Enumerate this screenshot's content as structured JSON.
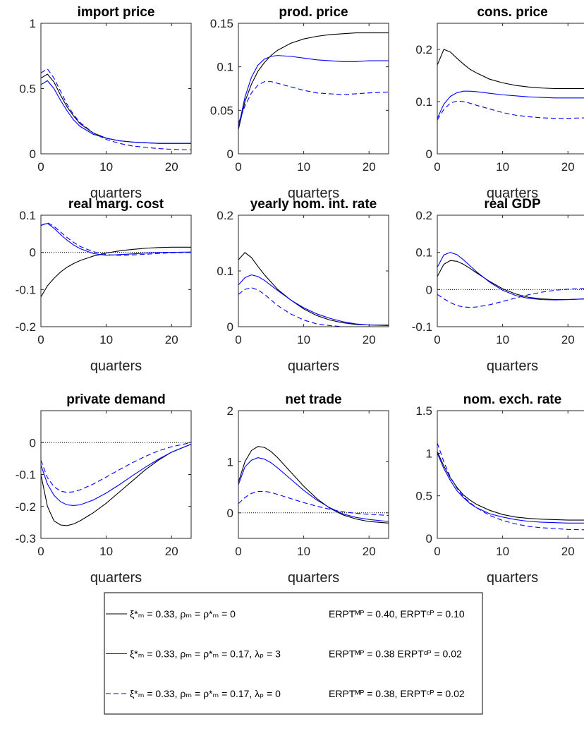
{
  "chart_data": [
    {
      "type": "line",
      "title": "import price",
      "xlabel": "quarters",
      "xlim": [
        0,
        23
      ],
      "xticks": [
        0,
        10,
        20
      ],
      "ylim": [
        0,
        1
      ],
      "yticks": [
        0,
        0.5,
        1
      ],
      "zero_line": false,
      "x": [
        0,
        1,
        2,
        3,
        4,
        5,
        6,
        8,
        10,
        12,
        14,
        16,
        18,
        20,
        23
      ],
      "series": [
        {
          "color": "#000000",
          "dash": false,
          "values": [
            0.58,
            0.61,
            0.55,
            0.45,
            0.36,
            0.29,
            0.23,
            0.16,
            0.12,
            0.1,
            0.09,
            0.085,
            0.08,
            0.08,
            0.08
          ]
        },
        {
          "color": "#0000ff",
          "dash": false,
          "values": [
            0.53,
            0.56,
            0.5,
            0.41,
            0.33,
            0.26,
            0.21,
            0.15,
            0.12,
            0.1,
            0.09,
            0.085,
            0.08,
            0.08,
            0.08
          ]
        },
        {
          "color": "#0000ff",
          "dash": true,
          "values": [
            0.62,
            0.65,
            0.58,
            0.48,
            0.38,
            0.3,
            0.24,
            0.16,
            0.11,
            0.08,
            0.06,
            0.05,
            0.04,
            0.035,
            0.03
          ]
        }
      ]
    },
    {
      "type": "line",
      "title": "prod. price",
      "xlabel": "quarters",
      "xlim": [
        0,
        23
      ],
      "xticks": [
        0,
        10,
        20
      ],
      "ylim": [
        0,
        0.15
      ],
      "yticks": [
        0,
        0.05,
        0.1,
        0.15
      ],
      "zero_line": false,
      "x": [
        0,
        1,
        2,
        3,
        4,
        5,
        6,
        8,
        10,
        12,
        14,
        16,
        18,
        20,
        23
      ],
      "series": [
        {
          "color": "#000000",
          "dash": false,
          "values": [
            0.028,
            0.06,
            0.08,
            0.095,
            0.105,
            0.113,
            0.119,
            0.127,
            0.132,
            0.135,
            0.137,
            0.138,
            0.139,
            0.139,
            0.139
          ]
        },
        {
          "color": "#0000ff",
          "dash": false,
          "values": [
            0.03,
            0.065,
            0.088,
            0.102,
            0.109,
            0.112,
            0.113,
            0.112,
            0.11,
            0.108,
            0.107,
            0.106,
            0.106,
            0.107,
            0.107
          ]
        },
        {
          "color": "#0000ff",
          "dash": true,
          "values": [
            0.035,
            0.055,
            0.07,
            0.079,
            0.083,
            0.083,
            0.081,
            0.077,
            0.073,
            0.07,
            0.069,
            0.068,
            0.069,
            0.07,
            0.071
          ]
        }
      ]
    },
    {
      "type": "line",
      "title": "cons. price",
      "xlabel": "quarters",
      "xlim": [
        0,
        23
      ],
      "xticks": [
        0,
        10,
        20
      ],
      "ylim": [
        0,
        0.25
      ],
      "yticks": [
        0,
        0.1,
        0.2
      ],
      "zero_line": false,
      "x": [
        0,
        1,
        2,
        3,
        4,
        5,
        6,
        8,
        10,
        12,
        14,
        16,
        18,
        20,
        23
      ],
      "series": [
        {
          "color": "#000000",
          "dash": false,
          "values": [
            0.17,
            0.2,
            0.195,
            0.183,
            0.172,
            0.162,
            0.155,
            0.143,
            0.136,
            0.131,
            0.128,
            0.126,
            0.125,
            0.125,
            0.125
          ]
        },
        {
          "color": "#0000ff",
          "dash": false,
          "values": [
            0.068,
            0.095,
            0.11,
            0.117,
            0.12,
            0.12,
            0.119,
            0.116,
            0.113,
            0.111,
            0.109,
            0.108,
            0.107,
            0.107,
            0.107
          ]
        },
        {
          "color": "#0000ff",
          "dash": true,
          "values": [
            0.065,
            0.085,
            0.097,
            0.101,
            0.1,
            0.097,
            0.093,
            0.086,
            0.079,
            0.074,
            0.071,
            0.069,
            0.068,
            0.068,
            0.069
          ]
        }
      ]
    },
    {
      "type": "line",
      "title": "real marg. cost",
      "xlabel": "quarters",
      "xlim": [
        0,
        23
      ],
      "xticks": [
        0,
        10,
        20
      ],
      "ylim": [
        -0.2,
        0.1
      ],
      "yticks": [
        -0.2,
        -0.1,
        0,
        0.1
      ],
      "zero_line": true,
      "x": [
        0,
        1,
        2,
        3,
        4,
        5,
        6,
        8,
        10,
        12,
        14,
        16,
        18,
        20,
        23
      ],
      "series": [
        {
          "color": "#000000",
          "dash": false,
          "values": [
            -0.12,
            -0.09,
            -0.07,
            -0.053,
            -0.04,
            -0.03,
            -0.022,
            -0.01,
            -0.002,
            0.004,
            0.008,
            0.011,
            0.013,
            0.014,
            0.014
          ]
        },
        {
          "color": "#0000ff",
          "dash": false,
          "values": [
            0.073,
            0.078,
            0.065,
            0.048,
            0.033,
            0.02,
            0.01,
            -0.003,
            -0.008,
            -0.006,
            -0.004,
            -0.002,
            0,
            0,
            0.001
          ]
        },
        {
          "color": "#0000ff",
          "dash": true,
          "values": [
            0.072,
            0.08,
            0.07,
            0.055,
            0.04,
            0.027,
            0.016,
            0.002,
            -0.006,
            -0.008,
            -0.007,
            -0.005,
            -0.003,
            -0.001,
            0
          ]
        }
      ]
    },
    {
      "type": "line",
      "title": "yearly nom. int. rate",
      "xlabel": "quarters",
      "xlim": [
        0,
        23
      ],
      "xticks": [
        0,
        10,
        20
      ],
      "ylim": [
        0,
        0.2
      ],
      "yticks": [
        0,
        0.1,
        0.2
      ],
      "zero_line": false,
      "x": [
        0,
        1,
        2,
        3,
        4,
        5,
        6,
        8,
        10,
        12,
        14,
        16,
        18,
        20,
        23
      ],
      "series": [
        {
          "color": "#000000",
          "dash": false,
          "values": [
            0.12,
            0.133,
            0.124,
            0.108,
            0.093,
            0.08,
            0.067,
            0.048,
            0.032,
            0.02,
            0.012,
            0.007,
            0.004,
            0.003,
            0.003
          ]
        },
        {
          "color": "#0000ff",
          "dash": false,
          "values": [
            0.075,
            0.088,
            0.093,
            0.09,
            0.083,
            0.074,
            0.065,
            0.048,
            0.034,
            0.023,
            0.015,
            0.009,
            0.005,
            0.003,
            0.002
          ]
        },
        {
          "color": "#0000ff",
          "dash": true,
          "values": [
            0.058,
            0.067,
            0.07,
            0.066,
            0.058,
            0.048,
            0.038,
            0.023,
            0.012,
            0.005,
            0.002,
            0,
            0,
            0,
            0
          ]
        }
      ]
    },
    {
      "type": "line",
      "title": "real GDP",
      "xlabel": "quarters",
      "xlim": [
        0,
        23
      ],
      "xticks": [
        0,
        10,
        20
      ],
      "ylim": [
        -0.1,
        0.2
      ],
      "yticks": [
        -0.1,
        0,
        0.1,
        0.2
      ],
      "zero_line": true,
      "x": [
        0,
        1,
        2,
        3,
        4,
        5,
        6,
        8,
        10,
        12,
        14,
        16,
        18,
        20,
        23
      ],
      "series": [
        {
          "color": "#000000",
          "dash": false,
          "values": [
            0.035,
            0.068,
            0.078,
            0.076,
            0.068,
            0.057,
            0.045,
            0.022,
            0.002,
            -0.012,
            -0.021,
            -0.025,
            -0.027,
            -0.027,
            -0.025
          ]
        },
        {
          "color": "#0000ff",
          "dash": false,
          "values": [
            0.06,
            0.093,
            0.1,
            0.094,
            0.08,
            0.064,
            0.048,
            0.02,
            -0.002,
            -0.016,
            -0.024,
            -0.027,
            -0.028,
            -0.027,
            -0.025
          ]
        },
        {
          "color": "#0000ff",
          "dash": true,
          "values": [
            -0.013,
            -0.025,
            -0.035,
            -0.043,
            -0.047,
            -0.048,
            -0.047,
            -0.041,
            -0.032,
            -0.023,
            -0.014,
            -0.007,
            -0.002,
            0.001,
            0.003
          ]
        }
      ]
    },
    {
      "type": "line",
      "title": "private demand",
      "xlabel": "quarters",
      "xlim": [
        0,
        23
      ],
      "xticks": [
        0,
        10,
        20
      ],
      "ylim": [
        -0.3,
        0.1
      ],
      "yticks": [
        -0.3,
        -0.2,
        -0.1,
        0
      ],
      "zero_line": true,
      "x": [
        0,
        1,
        2,
        3,
        4,
        5,
        6,
        8,
        10,
        12,
        14,
        16,
        18,
        20,
        23
      ],
      "series": [
        {
          "color": "#000000",
          "dash": false,
          "values": [
            -0.1,
            -0.2,
            -0.245,
            -0.258,
            -0.26,
            -0.255,
            -0.245,
            -0.22,
            -0.19,
            -0.155,
            -0.12,
            -0.085,
            -0.055,
            -0.03,
            -0.005
          ]
        },
        {
          "color": "#0000ff",
          "dash": false,
          "values": [
            -0.07,
            -0.13,
            -0.165,
            -0.185,
            -0.195,
            -0.197,
            -0.195,
            -0.18,
            -0.158,
            -0.132,
            -0.104,
            -0.077,
            -0.052,
            -0.03,
            -0.005
          ]
        },
        {
          "color": "#0000ff",
          "dash": true,
          "values": [
            -0.055,
            -0.11,
            -0.138,
            -0.152,
            -0.156,
            -0.154,
            -0.148,
            -0.13,
            -0.108,
            -0.085,
            -0.063,
            -0.043,
            -0.026,
            -0.013,
            0
          ]
        }
      ]
    },
    {
      "type": "line",
      "title": "net trade",
      "xlabel": "quarters",
      "xlim": [
        0,
        23
      ],
      "xticks": [
        0,
        10,
        20
      ],
      "ylim": [
        -0.5,
        2
      ],
      "yticks": [
        0,
        1,
        2
      ],
      "zero_line": true,
      "x": [
        0,
        1,
        2,
        3,
        4,
        5,
        6,
        8,
        10,
        12,
        14,
        16,
        18,
        20,
        23
      ],
      "series": [
        {
          "color": "#000000",
          "dash": false,
          "values": [
            0.6,
            1.0,
            1.22,
            1.3,
            1.28,
            1.2,
            1.08,
            0.8,
            0.52,
            0.28,
            0.09,
            -0.04,
            -0.12,
            -0.17,
            -0.2
          ]
        },
        {
          "color": "#0000ff",
          "dash": false,
          "values": [
            0.55,
            0.9,
            1.03,
            1.08,
            1.05,
            0.98,
            0.88,
            0.66,
            0.44,
            0.25,
            0.1,
            -0.02,
            -0.09,
            -0.13,
            -0.17
          ]
        },
        {
          "color": "#0000ff",
          "dash": true,
          "values": [
            0.18,
            0.3,
            0.38,
            0.42,
            0.42,
            0.4,
            0.36,
            0.28,
            0.2,
            0.13,
            0.07,
            0.02,
            -0.01,
            -0.03,
            -0.05
          ]
        }
      ]
    },
    {
      "type": "line",
      "title": "nom. exch. rate",
      "xlabel": "quarters",
      "xlim": [
        0,
        23
      ],
      "xticks": [
        0,
        10,
        20
      ],
      "ylim": [
        0,
        1.5
      ],
      "yticks": [
        0,
        0.5,
        1,
        1.5
      ],
      "zero_line": false,
      "x": [
        0,
        1,
        2,
        3,
        4,
        5,
        6,
        8,
        10,
        12,
        14,
        16,
        18,
        20,
        23
      ],
      "series": [
        {
          "color": "#000000",
          "dash": false,
          "values": [
            1.02,
            0.85,
            0.71,
            0.6,
            0.51,
            0.45,
            0.4,
            0.33,
            0.28,
            0.25,
            0.235,
            0.225,
            0.22,
            0.215,
            0.215
          ]
        },
        {
          "color": "#0000ff",
          "dash": false,
          "values": [
            1.0,
            0.82,
            0.68,
            0.56,
            0.48,
            0.41,
            0.36,
            0.29,
            0.25,
            0.22,
            0.2,
            0.19,
            0.185,
            0.18,
            0.18
          ]
        },
        {
          "color": "#0000ff",
          "dash": true,
          "values": [
            1.12,
            0.9,
            0.72,
            0.59,
            0.49,
            0.42,
            0.36,
            0.27,
            0.21,
            0.17,
            0.14,
            0.125,
            0.115,
            0.105,
            0.1
          ]
        }
      ]
    }
  ],
  "legend": {
    "entries": [
      {
        "label": "ξ*ₘ = 0.33, ρₘ = ρ*ₘ = 0",
        "erpt": "ERPTᴹᴾ = 0.40, ERPTᶜᴾ = 0.10"
      },
      {
        "label": "ξ*ₘ = 0.33, ρₘ = ρ*ₘ = 0.17, λₚ = 3",
        "erpt": "ERPTᴹᴾ = 0.38  ERPTᶜᴾ = 0.02"
      },
      {
        "label": "ξ*ₘ = 0.33, ρₘ = ρ*ₘ = 0.17, λₚ = 0",
        "erpt": "ERPTᴹᴾ = 0.38, ERPTᶜᴾ = 0.02"
      }
    ]
  }
}
